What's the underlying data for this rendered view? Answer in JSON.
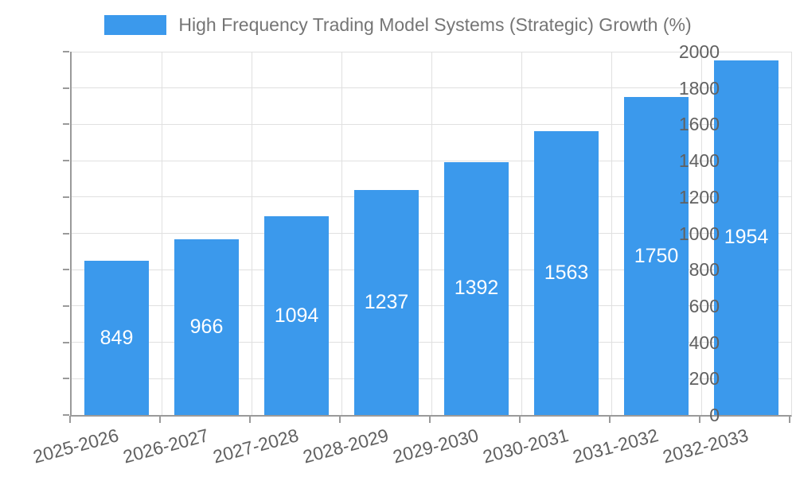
{
  "chart_data": {
    "type": "bar",
    "title": "High Frequency Trading Model Systems (Strategic) Growth (%)",
    "categories": [
      "2025-2026",
      "2026-2027",
      "2027-2028",
      "2028-2029",
      "2029-2030",
      "2030-2031",
      "2031-2032",
      "2032-2033"
    ],
    "values": [
      849,
      966,
      1094,
      1237,
      1392,
      1563,
      1750,
      1954
    ],
    "xlabel": "",
    "ylabel": "",
    "ylim": [
      0,
      2000
    ],
    "yticks": [
      0,
      200,
      400,
      600,
      800,
      1000,
      1200,
      1400,
      1600,
      1800,
      2000
    ],
    "grid": true,
    "legend_position": "top-center",
    "bar_label_position": "inside-center"
  },
  "colors": {
    "bar": "#3b99ec",
    "bar_label": "#ffffff",
    "axis_line": "#9a9a9a",
    "gridline": "#e0e0e0",
    "tick_text": "#616161",
    "legend_text": "#757575",
    "background": "#ffffff"
  }
}
